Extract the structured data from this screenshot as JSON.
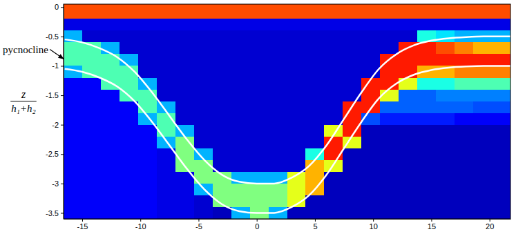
{
  "chart_data": {
    "type": "heatmap",
    "ylabel": {
      "numerator": "z",
      "denominator": "h₁+h₂"
    },
    "annotations": [
      {
        "text": "pycnocline",
        "x": -16.6,
        "y": -0.88
      }
    ],
    "xlim": [
      -16.6,
      21.8
    ],
    "ylim": [
      -3.6,
      0.05
    ],
    "xticks": [
      -15,
      -10,
      -5,
      0,
      5,
      10,
      15,
      20
    ],
    "yticks": [
      -3.5,
      -3,
      -2.5,
      -2,
      -1.5,
      -1,
      -0.5,
      0
    ],
    "zlim": [
      0,
      1
    ],
    "x_bins": [
      -16.6,
      -15,
      -13.4,
      -11.8,
      -10.2,
      -8.6,
      -7,
      -5.4,
      -3.8,
      -2.2,
      -0.6,
      1,
      2.6,
      4.2,
      5.8,
      7.4,
      9,
      10.6,
      12.2,
      13.8,
      15.4,
      17,
      18.6,
      20.2,
      21.8
    ],
    "y_bins": [
      0.05,
      -0.2,
      -0.4,
      -0.6,
      -0.8,
      -1,
      -1.2,
      -1.4,
      -1.6,
      -1.8,
      -2,
      -2.2,
      -2.4,
      -2.6,
      -2.8,
      -3,
      -3.2,
      -3.4,
      -3.6
    ],
    "cells": [
      [
        0.8,
        0.8,
        0.8,
        0.8,
        0.8,
        0.8,
        0.8,
        0.8,
        0.8,
        0.8,
        0.8,
        0.8,
        0.8,
        0.8,
        0.8,
        0.8,
        0.8,
        0.8,
        0.8,
        0.8,
        0.8,
        0.8,
        0.8,
        0.8
      ],
      [
        0.1,
        0.1,
        0.1,
        0.1,
        0.1,
        0.1,
        0.1,
        0.1,
        0.1,
        0.1,
        0.1,
        0.1,
        0.1,
        0.1,
        0.1,
        0.1,
        0.1,
        0.1,
        0.1,
        0.1,
        0.1,
        0.1,
        0.1,
        0.1
      ],
      [
        0.3,
        0.08,
        0.08,
        0.08,
        0.08,
        0.08,
        0.08,
        0.08,
        0.08,
        0.08,
        0.08,
        0.08,
        0.08,
        0.08,
        0.08,
        0.08,
        0.08,
        0.08,
        0.08,
        0.4,
        0.35,
        0.3,
        0.3,
        0.3
      ],
      [
        0.45,
        0.45,
        0.3,
        0.08,
        0.08,
        0.08,
        0.08,
        0.08,
        0.08,
        0.08,
        0.08,
        0.08,
        0.08,
        0.08,
        0.08,
        0.08,
        0.08,
        0.08,
        0.85,
        0.85,
        0.8,
        0.75,
        0.7,
        0.7
      ],
      [
        0.45,
        0.45,
        0.45,
        0.3,
        0.08,
        0.08,
        0.08,
        0.08,
        0.08,
        0.08,
        0.08,
        0.08,
        0.08,
        0.08,
        0.08,
        0.08,
        0.08,
        0.85,
        0.85,
        0.85,
        0.85,
        0.85,
        0.85,
        0.85
      ],
      [
        0.3,
        0.45,
        0.45,
        0.45,
        0.08,
        0.08,
        0.08,
        0.08,
        0.08,
        0.08,
        0.08,
        0.08,
        0.08,
        0.08,
        0.08,
        0.08,
        0.08,
        0.85,
        0.85,
        0.7,
        0.7,
        0.75,
        0.75,
        0.75
      ],
      [
        0.12,
        0.12,
        0.45,
        0.45,
        0.3,
        0.08,
        0.08,
        0.08,
        0.08,
        0.08,
        0.08,
        0.08,
        0.08,
        0.08,
        0.08,
        0.08,
        0.85,
        0.85,
        0.6,
        0.4,
        0.4,
        0.45,
        0.45,
        0.45
      ],
      [
        0.12,
        0.12,
        0.12,
        0.45,
        0.45,
        0.08,
        0.08,
        0.08,
        0.08,
        0.08,
        0.08,
        0.08,
        0.08,
        0.08,
        0.08,
        0.08,
        0.85,
        0.6,
        0.22,
        0.22,
        0.25,
        0.25,
        0.25,
        0.25
      ],
      [
        0.12,
        0.12,
        0.12,
        0.12,
        0.45,
        0.3,
        0.08,
        0.08,
        0.08,
        0.08,
        0.08,
        0.08,
        0.08,
        0.08,
        0.08,
        0.85,
        0.85,
        0.22,
        0.22,
        0.22,
        0.22,
        0.22,
        0.2,
        0.2
      ],
      [
        0.12,
        0.12,
        0.12,
        0.12,
        0.3,
        0.45,
        0.08,
        0.08,
        0.08,
        0.08,
        0.08,
        0.08,
        0.08,
        0.08,
        0.08,
        0.85,
        0.2,
        0.15,
        0.15,
        0.15,
        0.15,
        0.12,
        0.12,
        0.12
      ],
      [
        0.12,
        0.12,
        0.12,
        0.12,
        0.12,
        0.45,
        0.3,
        0.08,
        0.08,
        0.08,
        0.08,
        0.08,
        0.08,
        0.08,
        0.6,
        0.85,
        0.06,
        0.06,
        0.06,
        0.06,
        0.06,
        0.06,
        0.06,
        0.06
      ],
      [
        0.12,
        0.12,
        0.12,
        0.12,
        0.12,
        0.3,
        0.5,
        0.08,
        0.08,
        0.08,
        0.08,
        0.08,
        0.08,
        0.08,
        0.85,
        0.6,
        0.06,
        0.06,
        0.06,
        0.06,
        0.06,
        0.06,
        0.06,
        0.06
      ],
      [
        0.12,
        0.12,
        0.12,
        0.12,
        0.12,
        0.1,
        0.5,
        0.3,
        0.08,
        0.08,
        0.08,
        0.08,
        0.08,
        0.4,
        0.85,
        0.06,
        0.06,
        0.06,
        0.06,
        0.06,
        0.06,
        0.06,
        0.06,
        0.06
      ],
      [
        0.12,
        0.12,
        0.12,
        0.12,
        0.12,
        0.1,
        0.5,
        0.5,
        0.08,
        0.08,
        0.08,
        0.08,
        0.08,
        0.7,
        0.6,
        0.06,
        0.06,
        0.06,
        0.06,
        0.06,
        0.06,
        0.06,
        0.06,
        0.06
      ],
      [
        0.12,
        0.12,
        0.12,
        0.12,
        0.12,
        0.1,
        0.1,
        0.5,
        0.5,
        0.3,
        0.3,
        0.3,
        0.6,
        0.7,
        0.06,
        0.06,
        0.06,
        0.06,
        0.06,
        0.06,
        0.06,
        0.06,
        0.06,
        0.06
      ],
      [
        0.12,
        0.12,
        0.12,
        0.12,
        0.12,
        0.1,
        0.1,
        0.3,
        0.5,
        0.5,
        0.5,
        0.5,
        0.6,
        0.7,
        0.06,
        0.06,
        0.06,
        0.06,
        0.06,
        0.06,
        0.06,
        0.06,
        0.06,
        0.06
      ],
      [
        0.12,
        0.12,
        0.12,
        0.12,
        0.12,
        0.1,
        0.1,
        0.08,
        0.5,
        0.5,
        0.5,
        0.5,
        0.6,
        0.06,
        0.06,
        0.06,
        0.06,
        0.06,
        0.06,
        0.06,
        0.06,
        0.06,
        0.06,
        0.06
      ],
      [
        0.12,
        0.12,
        0.12,
        0.12,
        0.12,
        0.1,
        0.1,
        0.08,
        0.06,
        0.3,
        0.5,
        0.3,
        0.06,
        0.06,
        0.06,
        0.06,
        0.06,
        0.06,
        0.06,
        0.06,
        0.06,
        0.06,
        0.06,
        0.06
      ]
    ],
    "x": [
      -16.5,
      -15,
      -13.5,
      -12,
      -10.5,
      -9,
      -7.5,
      -6,
      -4.5,
      -3,
      -1.5,
      0,
      1.5,
      3,
      4.5,
      6,
      7.5,
      9,
      10.5,
      12,
      13.5,
      15,
      16.5,
      18,
      19.5,
      21,
      21.8
    ],
    "series": [
      {
        "type": "line",
        "color": "#ffffff",
        "values": [
          -0.55,
          -0.6,
          -0.7,
          -0.85,
          -1.1,
          -1.45,
          -1.85,
          -2.25,
          -2.6,
          -2.85,
          -2.97,
          -3.0,
          -3.0,
          -2.9,
          -2.7,
          -2.35,
          -1.9,
          -1.45,
          -1.05,
          -0.8,
          -0.65,
          -0.57,
          -0.53,
          -0.51,
          -0.5,
          -0.5,
          -0.5
        ]
      },
      {
        "type": "line",
        "color": "#ffffff",
        "values": [
          -1.05,
          -1.1,
          -1.2,
          -1.35,
          -1.6,
          -1.95,
          -2.35,
          -2.75,
          -3.1,
          -3.35,
          -3.47,
          -3.5,
          -3.5,
          -3.4,
          -3.2,
          -2.85,
          -2.4,
          -1.95,
          -1.55,
          -1.3,
          -1.15,
          -1.07,
          -1.03,
          -1.01,
          -1.0,
          -1.0,
          -1.0
        ]
      }
    ]
  }
}
